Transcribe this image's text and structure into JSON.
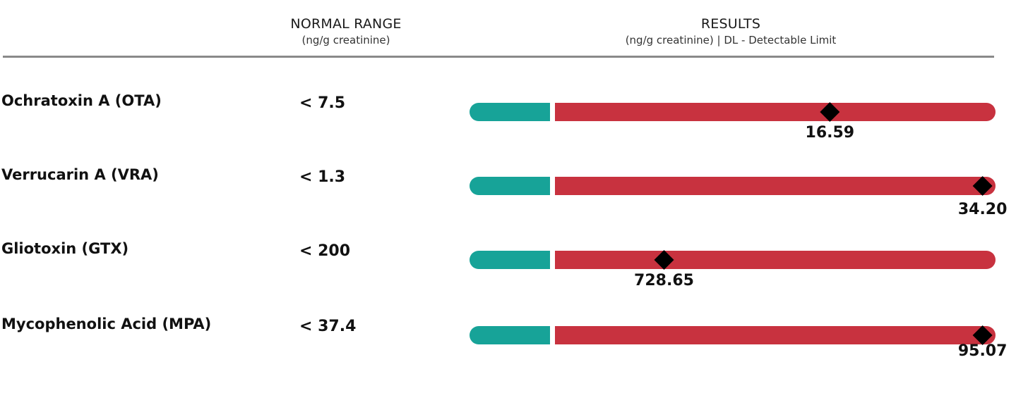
{
  "header": {
    "normal_range_title": "NORMAL RANGE",
    "normal_range_units": "(ng/g creatinine)",
    "results_title": "RESULTS",
    "results_units": "(ng/g creatinine) | DL - Detectable Limit"
  },
  "colors": {
    "normal": "#17a398",
    "high": "#c8323f",
    "marker": "#000000",
    "divider": "#8a8a8a"
  },
  "rows": [
    {
      "name": "Ochratoxin A (OTA)",
      "range": "< 7.5",
      "value": "16.59",
      "marker_fraction": 0.63
    },
    {
      "name": "Verrucarin A (VRA)",
      "range": "< 1.3",
      "value": "34.20",
      "marker_fraction": 0.98
    },
    {
      "name": "Gliotoxin (GTX)",
      "range": "< 200",
      "value": "728.65",
      "marker_fraction": 0.25
    },
    {
      "name": "Mycophenolic Acid (MPA)",
      "range": "< 37.4",
      "value": "95.07",
      "marker_fraction": 0.98
    }
  ],
  "chart_data": {
    "type": "bar",
    "categories": [
      "Ochratoxin A (OTA)",
      "Verrucarin A (VRA)",
      "Gliotoxin (GTX)",
      "Mycophenolic Acid (MPA)"
    ],
    "normal_range": [
      "< 7.5",
      "< 1.3",
      "< 200",
      "< 37.4"
    ],
    "values": [
      16.59,
      34.2,
      728.65,
      95.07
    ],
    "title": "",
    "xlabel": "",
    "ylabel": "",
    "grid": false,
    "legend": "none"
  }
}
